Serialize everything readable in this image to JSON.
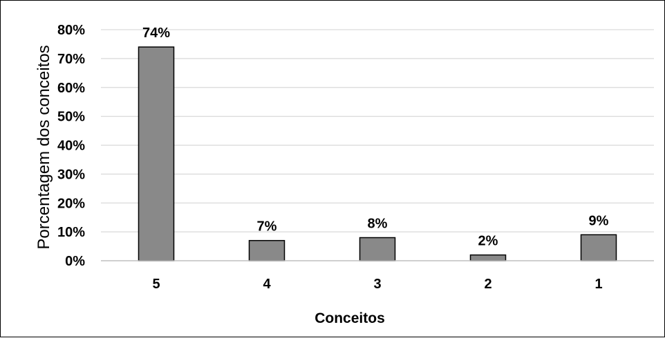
{
  "chart_data": {
    "type": "bar",
    "categories": [
      "5",
      "4",
      "3",
      "2",
      "1"
    ],
    "values": [
      74,
      7,
      8,
      2,
      9
    ],
    "data_labels": [
      "74%",
      "7%",
      "8%",
      "2%",
      "9%"
    ],
    "xlabel": "Conceitos",
    "ylabel": "Porcentagem dos conceitos",
    "ylim": [
      0,
      80
    ],
    "y_ticks": [
      "0%",
      "10%",
      "20%",
      "30%",
      "40%",
      "50%",
      "60%",
      "70%",
      "80%"
    ],
    "grid": true,
    "legend": "none",
    "bar_color": "#898989",
    "bar_edge_color": "#000000",
    "grid_color": "#d9d9d9"
  }
}
